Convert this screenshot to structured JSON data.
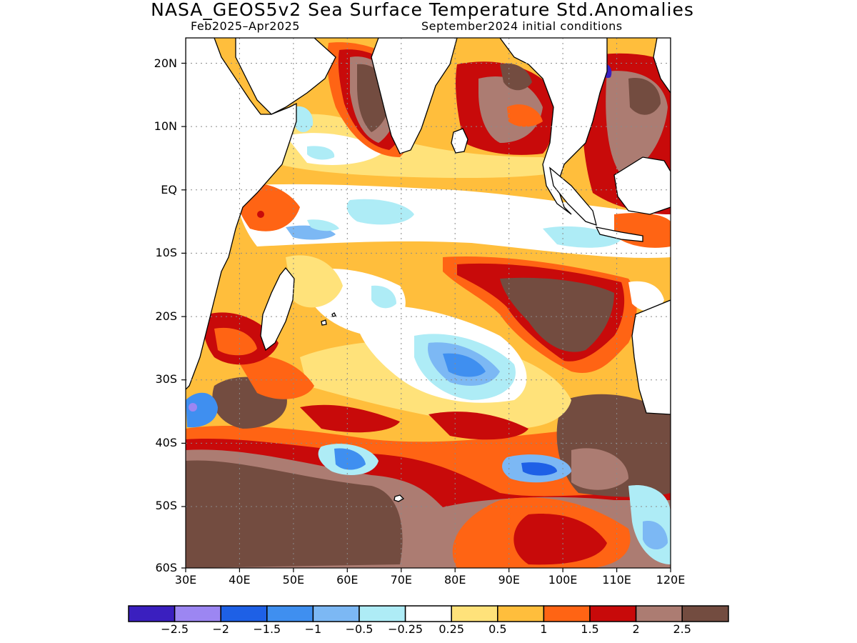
{
  "title": "NASA_GEOS5v2 Sea Surface Temperature Std.Anomalies",
  "subtitle_left": "Feb2025–Apr2025",
  "subtitle_right": "September2024 initial conditions",
  "map": {
    "region": "Indian Ocean",
    "lon_range": [
      30,
      120
    ],
    "lat_range": [
      -60,
      24
    ],
    "lon_ticks": [
      "30E",
      "40E",
      "50E",
      "60E",
      "70E",
      "80E",
      "90E",
      "100E",
      "110E",
      "120E"
    ],
    "lat_ticks": [
      "20N",
      "10N",
      "EQ",
      "10S",
      "20S",
      "30S",
      "40S",
      "50S",
      "60S"
    ],
    "grid": true,
    "land_color": "#ffffff",
    "coastline_color": "#000000"
  },
  "legend": {
    "labels": [
      "−2.5",
      "−2",
      "−1.5",
      "−1",
      "−0.5",
      "−0.25",
      "0.25",
      "0.5",
      "1",
      "1.5",
      "2",
      "2.5"
    ],
    "colors": [
      "#3a1fbf",
      "#9c86f2",
      "#1e60e6",
      "#3f8ff0",
      "#7cb8f4",
      "#aeecf6",
      "#ffffff",
      "#ffe27a",
      "#ffbe3c",
      "#ff6414",
      "#c80a0a",
      "#ac7c72",
      "#734c40"
    ]
  }
}
